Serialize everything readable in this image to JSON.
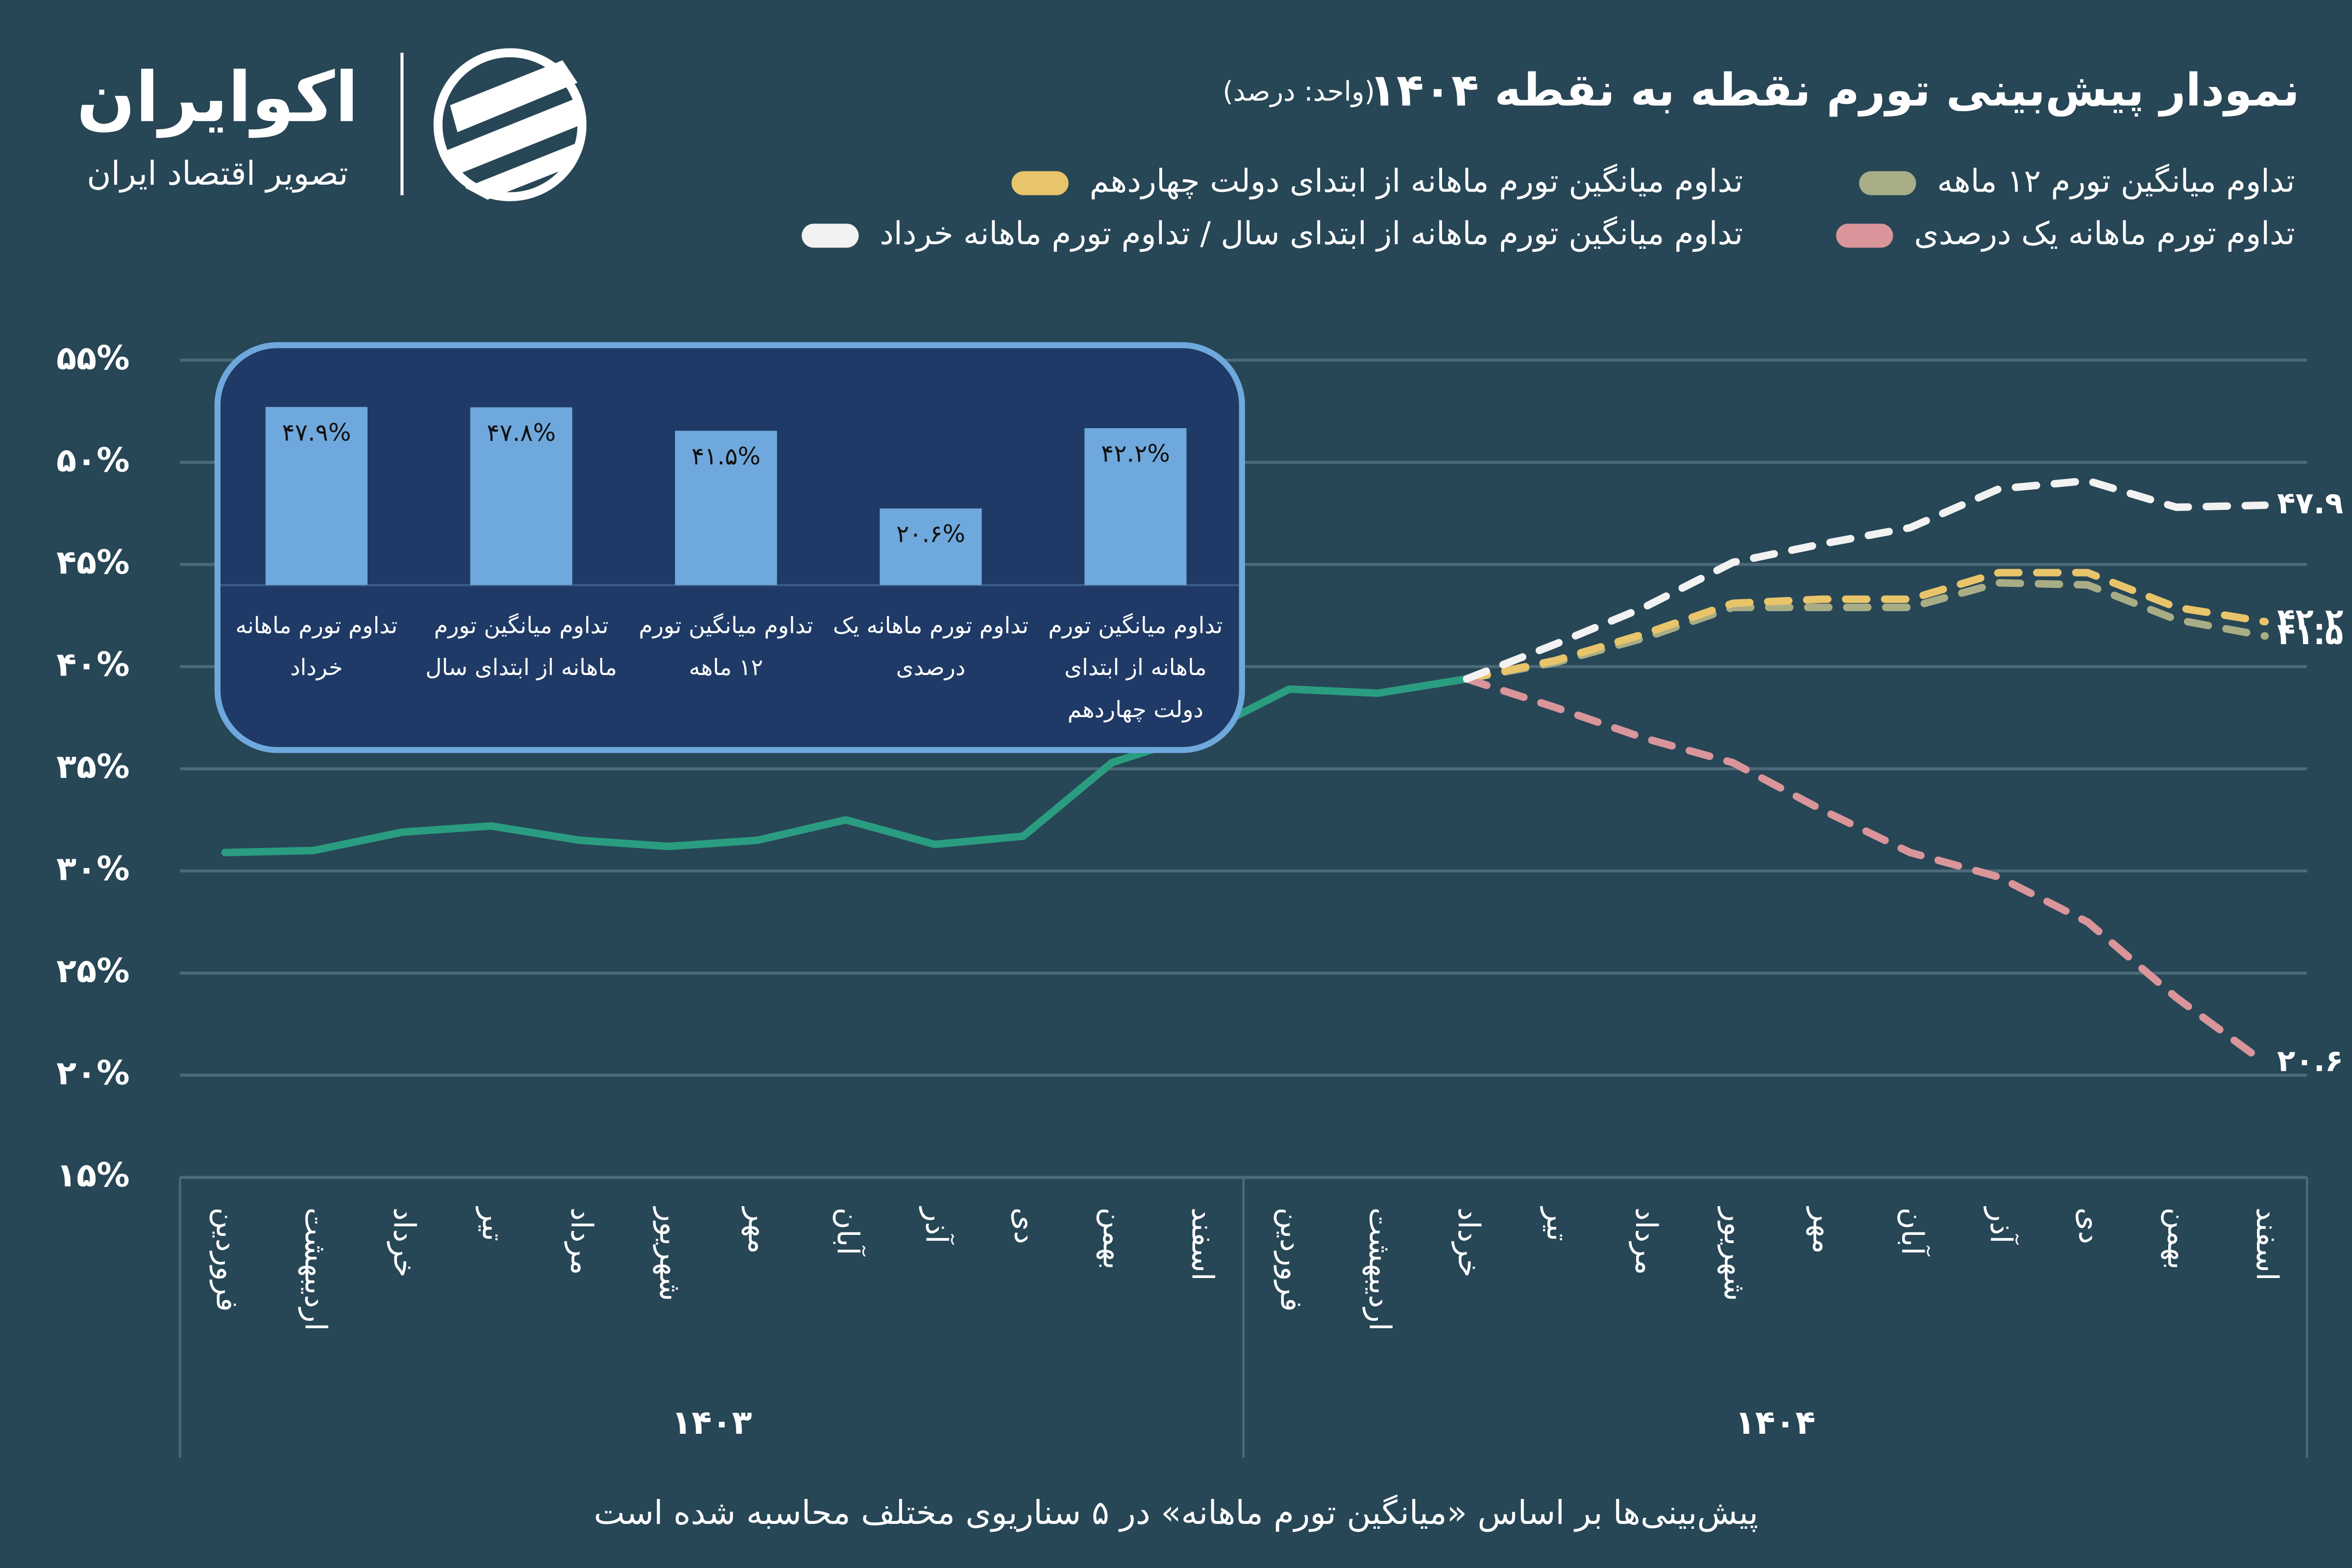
{
  "brand": {
    "name": "اکوایران",
    "tagline": "تصویر اقتصاد ایران"
  },
  "footer": "پیش‌بینی‌ها بر اساس «میانگین تورم ماهانه» در ۵ سناریوی مختلف محاسبه شده است",
  "chart_data": [
    {
      "type": "line",
      "title": "نمودار پیش‌بینی تورم نقطه به نقطه ۱۴۰۴",
      "subtitle": "(واحد: درصد)",
      "categories": [
        "فروردین",
        "اردیبهشت",
        "خرداد",
        "تیر",
        "مرداد",
        "شهریور",
        "مهر",
        "آبان",
        "آذر",
        "دی",
        "بهمن",
        "اسفند",
        "فروردین",
        "اردیبهشت",
        "خرداد",
        "تیر",
        "مرداد",
        "شهریور",
        "مهر",
        "آبان",
        "آذر",
        "دی",
        "بهمن",
        "اسفند"
      ],
      "x_groups": [
        "۱۴۰۳",
        "۱۴۰۴"
      ],
      "ylim": [
        15,
        55
      ],
      "yticks": [
        {
          "value": 15,
          "label": "۱۵%"
        },
        {
          "value": 20,
          "label": "۲۰%"
        },
        {
          "value": 25,
          "label": "۲۵%"
        },
        {
          "value": 30,
          "label": "۳۰%"
        },
        {
          "value": 35,
          "label": "۳۵%"
        },
        {
          "value": 40,
          "label": "۴۰%"
        },
        {
          "value": 45,
          "label": "۴۵%"
        },
        {
          "value": 50,
          "label": "۵۰%"
        },
        {
          "value": 55,
          "label": "۵۵%"
        }
      ],
      "grid": true,
      "series": [
        {
          "color": "#2a9d80",
          "values": [
            30.9,
            31.0,
            31.9,
            32.2,
            31.5,
            31.2,
            31.5,
            32.5,
            31.3,
            31.7,
            35.3,
            36.7,
            38.9,
            38.7,
            39.4,
            null,
            null,
            null,
            null,
            null,
            null,
            null,
            null,
            null
          ]
        },
        {
          "name": "تداوم میانگین تورم ۱۲ ماهه",
          "color": "#a8ad85",
          "dash": true,
          "values": [
            null,
            null,
            null,
            null,
            null,
            null,
            null,
            null,
            null,
            null,
            null,
            null,
            null,
            null,
            39.4,
            40.2,
            41.4,
            42.9,
            42.9,
            42.9,
            44.1,
            44.0,
            42.3,
            41.5
          ],
          "value_labels": [
            null,
            null,
            null,
            null,
            null,
            null,
            null,
            null,
            null,
            null,
            null,
            null,
            null,
            null,
            null,
            null,
            null,
            null,
            null,
            null,
            null,
            null,
            null,
            "۴۱.۵"
          ]
        },
        {
          "name": "تداوم میانگین تورم ماهانه از ابتدای دولت چهاردهم",
          "color": "#e8c46a",
          "dash": true,
          "values": [
            null,
            null,
            null,
            null,
            null,
            null,
            null,
            null,
            null,
            null,
            null,
            null,
            null,
            null,
            39.4,
            40.3,
            41.6,
            43.1,
            43.3,
            43.3,
            44.6,
            44.6,
            42.9,
            42.2
          ],
          "value_labels": [
            null,
            null,
            null,
            null,
            null,
            null,
            null,
            null,
            null,
            null,
            null,
            null,
            null,
            null,
            null,
            null,
            null,
            null,
            null,
            null,
            null,
            null,
            null,
            "۴۲.۲"
          ]
        },
        {
          "name": "تداوم تورم ماهانه یک درصدی",
          "color": "#d9959a",
          "dash": true,
          "values": [
            null,
            null,
            null,
            null,
            null,
            null,
            null,
            null,
            null,
            null,
            null,
            null,
            null,
            null,
            39.4,
            38.0,
            36.5,
            35.3,
            33.0,
            30.9,
            29.7,
            27.5,
            23.8,
            20.6
          ],
          "value_labels": [
            null,
            null,
            null,
            null,
            null,
            null,
            null,
            null,
            null,
            null,
            null,
            null,
            null,
            null,
            null,
            null,
            null,
            null,
            null,
            null,
            null,
            null,
            null,
            "۲۰.۶"
          ]
        },
        {
          "name": "تداوم میانگین تورم ماهانه از ابتدای سال / تداوم تورم ماهانه خرداد",
          "color": "#f2f2f2",
          "dash": true,
          "values": [
            null,
            null,
            null,
            null,
            null,
            null,
            null,
            null,
            null,
            null,
            null,
            null,
            null,
            null,
            39.4,
            41.1,
            42.9,
            45.1,
            46.0,
            46.8,
            48.7,
            49.1,
            47.8,
            47.9
          ],
          "value_labels": [
            null,
            null,
            null,
            null,
            null,
            null,
            null,
            null,
            null,
            null,
            null,
            null,
            null,
            null,
            null,
            null,
            null,
            null,
            null,
            null,
            null,
            null,
            null,
            "۴۷.۹"
          ]
        }
      ]
    },
    {
      "type": "bar",
      "categories": [
        "تداوم تورم ماهانه خرداد",
        "تداوم میانگین تورم ماهانه از ابتدای سال",
        "تداوم میانگین تورم ۱۲ ماهه",
        "تداوم تورم ماهانه یک درصدی",
        "تداوم میانگین تورم ماهانه از ابتدای دولت چهاردهم"
      ],
      "values": [
        47.9,
        47.8,
        41.5,
        20.6,
        42.2
      ],
      "value_labels": [
        "۴۷.۹%",
        "۴۷.۸%",
        "۴۱.۵%",
        "۲۰.۶%",
        "۴۲.۲%"
      ],
      "color": "#6fa8dc"
    }
  ]
}
